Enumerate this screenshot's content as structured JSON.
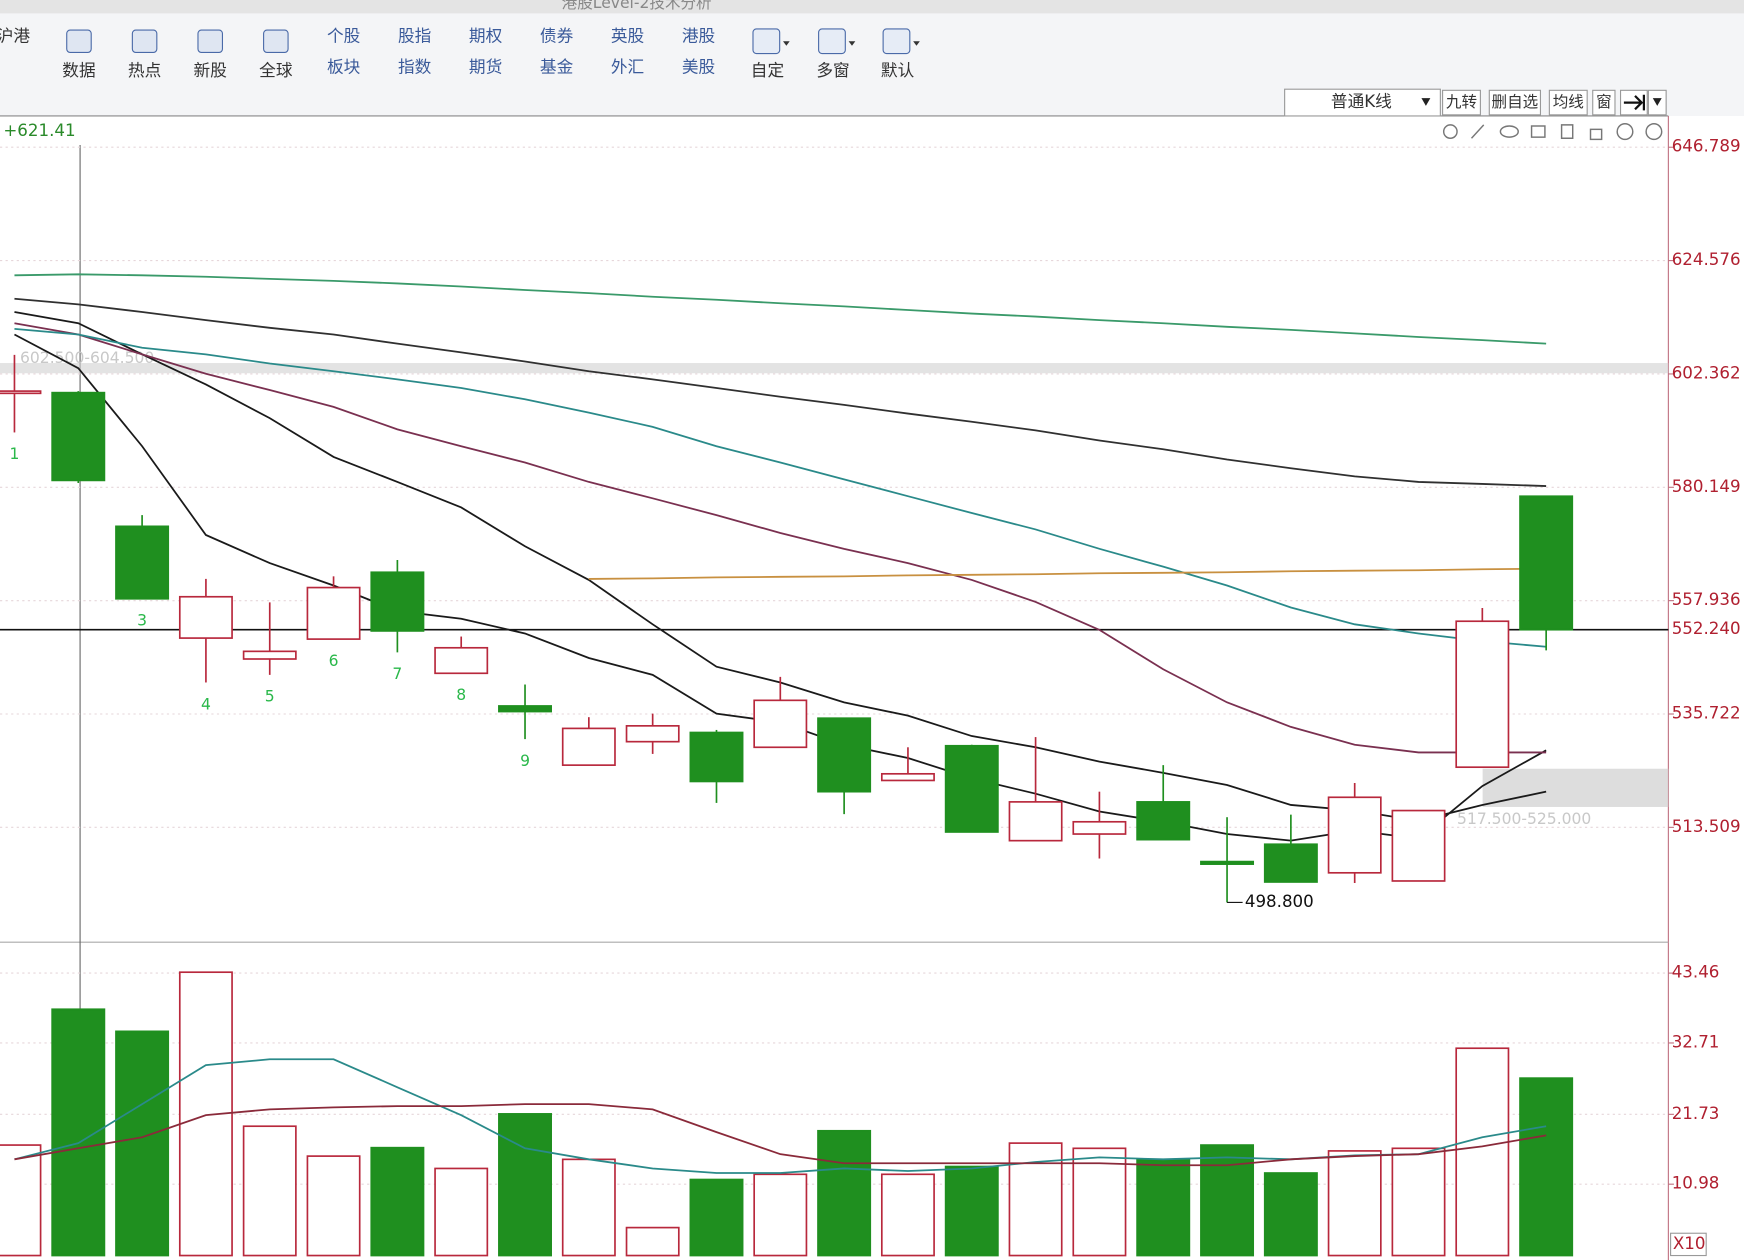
{
  "window_title": "港股Level-2技术分析",
  "toolbar": {
    "single": [
      "沪港",
      "数据",
      "热点",
      "新股",
      "全球"
    ],
    "pairs": [
      [
        "个股",
        "板块"
      ],
      [
        "股指",
        "指数"
      ],
      [
        "期权",
        "期货"
      ],
      [
        "债券",
        "基金"
      ],
      [
        "英股",
        "外汇"
      ],
      [
        "港股",
        "美股"
      ]
    ],
    "right": [
      "自定",
      "多窗",
      "默认"
    ]
  },
  "view_bar": {
    "kline_type": "普通K线",
    "buttons": [
      "九转",
      "删自选",
      "均线",
      "窗"
    ]
  },
  "chart_data": {
    "type": "candlestick",
    "header_value": "+621.41",
    "up_color": "#b8283c",
    "down_color": "#1f8f1f",
    "open": [
      598.7,
      598.7,
      572.5,
      550.6,
      546.5,
      550.4,
      563.5,
      543.7,
      537.3,
      525.7,
      530.3,
      532.1,
      529.2,
      534.9,
      522.7,
      529.5,
      510.9,
      512.2,
      518.5,
      506.8,
      510.2,
      504.6,
      503.0,
      525.3,
      578.4
    ],
    "high": [
      606.1,
      599.0,
      574.7,
      562.2,
      557.6,
      562.7,
      565.9,
      550.9,
      541.5,
      535.1,
      535.8,
      532.6,
      543.0,
      534.9,
      529.2,
      529.7,
      531.2,
      520.5,
      525.7,
      515.5,
      516.0,
      522.2,
      516.8,
      556.5,
      578.4
    ],
    "low": [
      590.9,
      581.0,
      558.3,
      541.9,
      543.4,
      550.4,
      547.8,
      543.7,
      530.8,
      525.7,
      527.9,
      518.3,
      529.2,
      516.1,
      522.7,
      512.6,
      510.9,
      507.4,
      511.1,
      498.8,
      502.8,
      502.6,
      503.0,
      525.3,
      548.2
    ],
    "close": [
      599.0,
      581.5,
      558.3,
      558.7,
      548.0,
      560.5,
      552.0,
      548.7,
      536.2,
      532.9,
      533.4,
      522.5,
      538.4,
      520.5,
      524.0,
      512.6,
      518.5,
      514.6,
      511.1,
      506.3,
      502.8,
      519.4,
      516.8,
      553.9,
      552.24
    ],
    "sequence_labels": [
      1,
      null,
      3,
      4,
      5,
      6,
      7,
      8,
      9,
      null,
      null,
      null,
      null,
      null,
      null,
      null,
      null,
      null,
      null,
      null,
      null,
      null,
      null,
      null,
      null
    ],
    "ylim": [
      491.0,
      652.7
    ],
    "yticks": [
      513.509,
      535.722,
      557.936,
      580.149,
      602.362,
      624.576,
      646.789
    ],
    "price_line": {
      "value": 552.24,
      "label": "552.240"
    },
    "low_label": {
      "value": 498.8,
      "label": "498.800"
    },
    "zones": [
      {
        "low": 602.5,
        "high": 604.5,
        "label": "602.500-604.500"
      },
      {
        "low": 517.5,
        "high": 525.0,
        "label": "517.500-525.000"
      }
    ],
    "ma_series": [
      {
        "color": "#1a1a1a",
        "values": [
          610.1,
          603.5,
          588.2,
          570.8,
          565.3,
          560.9,
          555.9,
          554.4,
          551.5,
          546.7,
          543.4,
          535.8,
          534.1,
          529.7,
          527.1,
          523.1,
          520.1,
          516.6,
          514.6,
          512.2,
          510.9,
          512.9,
          511.3,
          521.6,
          528.6
        ]
      },
      {
        "color": "#1a1a1a",
        "values": [
          614.5,
          612.3,
          606.2,
          600.3,
          593.7,
          586.1,
          581.2,
          576.2,
          568.6,
          562.0,
          553.3,
          545.0,
          541.9,
          538.0,
          535.4,
          531.4,
          529.2,
          526.4,
          524.2,
          521.8,
          517.9,
          516.8,
          514.8,
          517.9,
          520.5
        ]
      },
      {
        "color": "#7a3050",
        "values": [
          612.3,
          610.1,
          606.2,
          602.4,
          599.2,
          595.9,
          591.5,
          588.2,
          585.0,
          581.2,
          578.0,
          574.7,
          571.2,
          568.1,
          565.3,
          562.0,
          557.7,
          552.2,
          544.5,
          538.0,
          533.2,
          529.7,
          528.2,
          528.2,
          528.2
        ]
      },
      {
        "color": "#2a8a8a",
        "values": [
          611.2,
          610.1,
          607.5,
          606.2,
          604.4,
          602.9,
          601.3,
          599.6,
          597.4,
          594.8,
          592.0,
          588.2,
          585.0,
          581.7,
          578.4,
          575.1,
          571.9,
          568.1,
          564.6,
          560.9,
          556.6,
          553.3,
          551.5,
          550.0,
          548.9
        ]
      },
      {
        "color": "#303030",
        "values": [
          617.1,
          616.0,
          614.5,
          612.9,
          611.4,
          610.1,
          608.3,
          606.6,
          604.8,
          602.9,
          601.3,
          599.6,
          597.9,
          596.3,
          594.6,
          593.0,
          591.3,
          589.3,
          587.6,
          585.6,
          583.9,
          582.3,
          581.2,
          580.8,
          580.4
        ]
      },
      {
        "color": "#3a9a6a",
        "values": [
          621.7,
          621.9,
          621.7,
          621.4,
          621.0,
          620.6,
          620.1,
          619.5,
          618.8,
          618.2,
          617.5,
          616.9,
          616.2,
          615.6,
          614.9,
          614.2,
          613.6,
          612.9,
          612.3,
          611.6,
          611.0,
          610.3,
          609.6,
          609.0,
          608.3
        ]
      },
      {
        "color": "#c89040",
        "values": [
          null,
          null,
          null,
          null,
          null,
          null,
          null,
          null,
          null,
          562.2,
          562.3,
          562.5,
          562.6,
          562.7,
          562.9,
          563.0,
          563.1,
          563.3,
          563.4,
          563.5,
          563.7,
          563.8,
          563.9,
          564.1,
          564.2
        ]
      }
    ],
    "volume": {
      "unit": "X10",
      "ylim": [
        0,
        47.7
      ],
      "yticks": [
        10.98,
        21.73,
        32.71,
        43.46
      ],
      "values": [
        17.0,
        37.9,
        34.5,
        43.6,
        19.9,
        15.3,
        16.6,
        13.4,
        21.8,
        14.8,
        4.3,
        11.7,
        12.5,
        19.2,
        12.5,
        13.7,
        17.3,
        16.5,
        14.8,
        17.0,
        12.7,
        16.1,
        16.5,
        31.9,
        27.3
      ],
      "ma_series": [
        {
          "color": "#2a8a8a",
          "values": [
            14.8,
            17.3,
            23.3,
            29.3,
            30.2,
            30.2,
            25.9,
            21.6,
            16.5,
            14.8,
            13.4,
            12.7,
            12.7,
            13.4,
            13.0,
            13.4,
            14.4,
            15.1,
            14.8,
            15.1,
            14.8,
            15.4,
            15.6,
            18.2,
            19.9
          ]
        },
        {
          "color": "#8a2a3a",
          "values": [
            14.8,
            16.5,
            18.2,
            21.6,
            22.5,
            22.8,
            23.0,
            23.0,
            23.3,
            23.3,
            22.5,
            19.0,
            15.6,
            14.2,
            14.2,
            14.2,
            14.2,
            14.2,
            13.9,
            13.9,
            14.8,
            15.3,
            15.6,
            16.8,
            18.5
          ]
        }
      ]
    }
  }
}
